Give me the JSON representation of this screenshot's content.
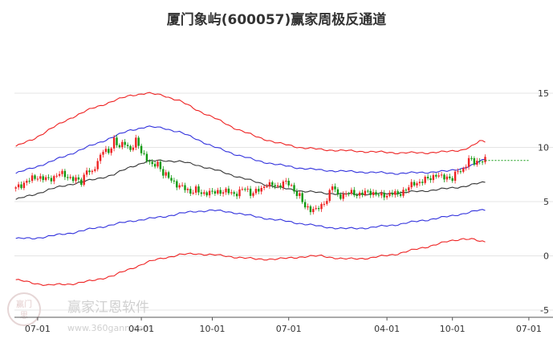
{
  "chart_data": {
    "type": "line",
    "title": "厦门象屿(600057)赢家周极反通道",
    "xlabel": "",
    "ylabel": "",
    "ylim": [
      -5,
      15
    ],
    "y_ticks": [
      15,
      10,
      5,
      0,
      -5
    ],
    "x_ticks": [
      "07-01",
      "04-01",
      "10-01",
      "07-01",
      "04-01",
      "10-01",
      "07-01"
    ],
    "x_tick_idx": [
      8,
      46,
      72,
      100,
      136,
      160,
      188
    ],
    "grid": true,
    "legend": "none",
    "colors": {
      "outer_band": "#ee2222",
      "inner_band": "#3333dd",
      "middle": "#333333",
      "candle_up": "#ee2222",
      "candle_down": "#119911",
      "last_price_line": "#119911"
    },
    "series": [
      {
        "role": "outer-upper",
        "points": [
          [
            0,
            10.1
          ],
          [
            6,
            10.7
          ],
          [
            12,
            11.6
          ],
          [
            20,
            12.7
          ],
          [
            28,
            13.6
          ],
          [
            36,
            14.3
          ],
          [
            42,
            14.8
          ],
          [
            48,
            15.0
          ],
          [
            54,
            14.8
          ],
          [
            60,
            14.3
          ],
          [
            66,
            13.5
          ],
          [
            72,
            12.8
          ],
          [
            80,
            11.8
          ],
          [
            88,
            11.0
          ],
          [
            96,
            10.4
          ],
          [
            104,
            10.0
          ],
          [
            112,
            9.8
          ],
          [
            120,
            9.7
          ],
          [
            130,
            9.6
          ],
          [
            140,
            9.5
          ],
          [
            150,
            9.5
          ],
          [
            158,
            9.6
          ],
          [
            164,
            9.8
          ],
          [
            168,
            10.2
          ],
          [
            170,
            10.6
          ],
          [
            172,
            10.5
          ]
        ]
      },
      {
        "role": "inner-upper",
        "points": [
          [
            0,
            7.6
          ],
          [
            6,
            8.1
          ],
          [
            12,
            8.6
          ],
          [
            20,
            9.4
          ],
          [
            28,
            10.2
          ],
          [
            36,
            11.0
          ],
          [
            42,
            11.6
          ],
          [
            48,
            11.9
          ],
          [
            54,
            11.8
          ],
          [
            60,
            11.4
          ],
          [
            66,
            10.8
          ],
          [
            72,
            10.1
          ],
          [
            80,
            9.4
          ],
          [
            88,
            8.8
          ],
          [
            96,
            8.4
          ],
          [
            104,
            8.1
          ],
          [
            112,
            7.9
          ],
          [
            120,
            7.8
          ],
          [
            130,
            7.7
          ],
          [
            140,
            7.6
          ],
          [
            150,
            7.7
          ],
          [
            158,
            7.8
          ],
          [
            164,
            8.1
          ],
          [
            168,
            8.4
          ],
          [
            170,
            8.7
          ],
          [
            172,
            8.9
          ]
        ]
      },
      {
        "role": "middle",
        "points": [
          [
            0,
            5.2
          ],
          [
            6,
            5.6
          ],
          [
            12,
            6.1
          ],
          [
            20,
            6.6
          ],
          [
            28,
            7.0
          ],
          [
            36,
            7.5
          ],
          [
            42,
            8.2
          ],
          [
            48,
            8.7
          ],
          [
            54,
            8.8
          ],
          [
            60,
            8.7
          ],
          [
            66,
            8.4
          ],
          [
            72,
            8.0
          ],
          [
            80,
            7.4
          ],
          [
            88,
            6.8
          ],
          [
            96,
            6.3
          ],
          [
            104,
            6.0
          ],
          [
            112,
            5.8
          ],
          [
            120,
            5.7
          ],
          [
            130,
            5.7
          ],
          [
            140,
            5.8
          ],
          [
            150,
            6.0
          ],
          [
            158,
            6.2
          ],
          [
            164,
            6.4
          ],
          [
            168,
            6.6
          ],
          [
            170,
            6.7
          ],
          [
            172,
            6.8
          ]
        ]
      },
      {
        "role": "inner-lower",
        "points": [
          [
            0,
            1.6
          ],
          [
            6,
            1.6
          ],
          [
            12,
            1.8
          ],
          [
            20,
            2.1
          ],
          [
            28,
            2.5
          ],
          [
            36,
            2.9
          ],
          [
            42,
            3.2
          ],
          [
            48,
            3.4
          ],
          [
            54,
            3.6
          ],
          [
            60,
            3.9
          ],
          [
            66,
            4.1
          ],
          [
            72,
            4.2
          ],
          [
            80,
            4.0
          ],
          [
            88,
            3.6
          ],
          [
            96,
            3.3
          ],
          [
            104,
            3.0
          ],
          [
            112,
            2.7
          ],
          [
            120,
            2.5
          ],
          [
            130,
            2.6
          ],
          [
            140,
            2.9
          ],
          [
            150,
            3.3
          ],
          [
            158,
            3.6
          ],
          [
            164,
            3.9
          ],
          [
            168,
            4.1
          ],
          [
            170,
            4.2
          ],
          [
            172,
            4.2
          ]
        ]
      },
      {
        "role": "outer-lower",
        "points": [
          [
            0,
            -2.2
          ],
          [
            6,
            -2.5
          ],
          [
            12,
            -2.7
          ],
          [
            20,
            -2.6
          ],
          [
            28,
            -2.3
          ],
          [
            36,
            -1.8
          ],
          [
            42,
            -1.2
          ],
          [
            48,
            -0.6
          ],
          [
            54,
            -0.2
          ],
          [
            60,
            0.1
          ],
          [
            66,
            0.2
          ],
          [
            72,
            0.1
          ],
          [
            80,
            -0.1
          ],
          [
            88,
            -0.3
          ],
          [
            96,
            -0.3
          ],
          [
            104,
            -0.1
          ],
          [
            112,
            0.0
          ],
          [
            120,
            -0.3
          ],
          [
            130,
            -0.2
          ],
          [
            140,
            0.2
          ],
          [
            150,
            0.8
          ],
          [
            158,
            1.3
          ],
          [
            164,
            1.6
          ],
          [
            168,
            1.5
          ],
          [
            170,
            1.3
          ],
          [
            172,
            1.3
          ]
        ]
      }
    ],
    "price_path": [
      [
        0,
        6.2
      ],
      [
        4,
        6.9
      ],
      [
        8,
        7.3
      ],
      [
        12,
        7.0
      ],
      [
        16,
        7.6
      ],
      [
        20,
        7.2
      ],
      [
        24,
        6.8
      ],
      [
        26,
        8.0
      ],
      [
        28,
        7.5
      ],
      [
        30,
        8.8
      ],
      [
        32,
        9.8
      ],
      [
        34,
        9.4
      ],
      [
        36,
        10.8
      ],
      [
        38,
        10.0
      ],
      [
        40,
        10.4
      ],
      [
        42,
        9.8
      ],
      [
        44,
        10.6
      ],
      [
        46,
        9.6
      ],
      [
        48,
        9.0
      ],
      [
        50,
        8.2
      ],
      [
        52,
        8.6
      ],
      [
        54,
        7.6
      ],
      [
        56,
        7.2
      ],
      [
        58,
        6.8
      ],
      [
        60,
        6.4
      ],
      [
        62,
        6.2
      ],
      [
        64,
        5.9
      ],
      [
        66,
        6.1
      ],
      [
        68,
        5.7
      ],
      [
        70,
        5.9
      ],
      [
        72,
        5.8
      ],
      [
        76,
        6.0
      ],
      [
        80,
        5.7
      ],
      [
        84,
        6.2
      ],
      [
        86,
        5.8
      ],
      [
        90,
        6.1
      ],
      [
        92,
        6.7
      ],
      [
        96,
        6.3
      ],
      [
        98,
        6.9
      ],
      [
        100,
        6.6
      ],
      [
        102,
        6.0
      ],
      [
        104,
        5.6
      ],
      [
        106,
        4.4
      ],
      [
        110,
        4.3
      ],
      [
        112,
        4.5
      ],
      [
        114,
        5.3
      ],
      [
        116,
        6.5
      ],
      [
        118,
        5.5
      ],
      [
        122,
        5.8
      ],
      [
        126,
        5.7
      ],
      [
        130,
        5.9
      ],
      [
        134,
        5.5
      ],
      [
        138,
        5.8
      ],
      [
        140,
        5.6
      ],
      [
        142,
        6.0
      ],
      [
        144,
        6.3
      ],
      [
        146,
        6.7
      ],
      [
        148,
        6.8
      ],
      [
        150,
        7.0
      ],
      [
        152,
        7.2
      ],
      [
        154,
        7.5
      ],
      [
        156,
        7.2
      ],
      [
        158,
        7.3
      ],
      [
        160,
        7.1
      ],
      [
        162,
        7.8
      ],
      [
        164,
        8.0
      ],
      [
        166,
        8.9
      ],
      [
        168,
        8.6
      ],
      [
        170,
        8.8
      ],
      [
        172,
        8.8
      ]
    ],
    "last_price": 8.8
  },
  "watermark": {
    "logo_top": "赢门",
    "logo_bottom": "思",
    "brand": "赢家江恩软件",
    "url": "www.360gann.com"
  }
}
